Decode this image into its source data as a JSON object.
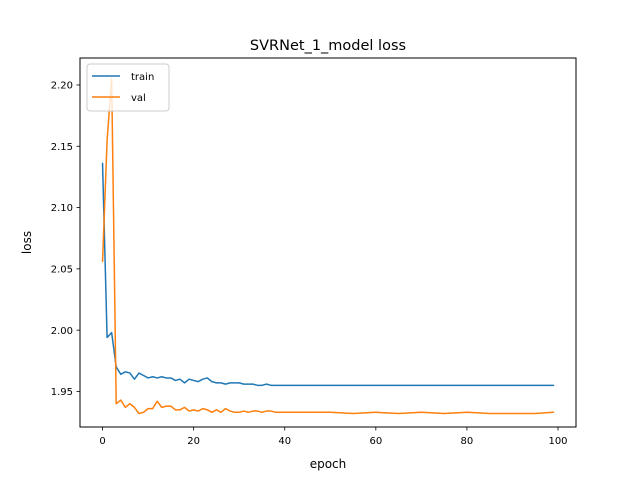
{
  "chart_data": {
    "type": "line",
    "title": "SVRNet_1_model loss",
    "xlabel": "epoch",
    "ylabel": "loss",
    "xlim": [
      -4.95,
      103.95
    ],
    "ylim": [
      1.921,
      2.222
    ],
    "xticks": [
      0,
      20,
      40,
      60,
      80,
      100
    ],
    "xtick_labels": [
      "0",
      "20",
      "40",
      "60",
      "80",
      "100"
    ],
    "yticks": [
      1.95,
      2.0,
      2.05,
      2.1,
      2.15,
      2.2
    ],
    "ytick_labels": [
      "1.95",
      "2.00",
      "2.05",
      "2.10",
      "2.15",
      "2.20"
    ],
    "grid": false,
    "legend_position": "top-left",
    "series": [
      {
        "name": "train",
        "color": "#1f77b4",
        "x": [
          0,
          1,
          2,
          3,
          4,
          5,
          6,
          7,
          8,
          9,
          10,
          11,
          12,
          13,
          14,
          15,
          16,
          17,
          18,
          19,
          20,
          21,
          22,
          23,
          24,
          25,
          26,
          27,
          28,
          29,
          30,
          31,
          32,
          33,
          34,
          35,
          36,
          37,
          38,
          39,
          40,
          45,
          50,
          55,
          60,
          65,
          70,
          75,
          80,
          85,
          90,
          95,
          99
        ],
        "values": [
          2.136,
          1.994,
          1.998,
          1.97,
          1.964,
          1.966,
          1.965,
          1.96,
          1.965,
          1.963,
          1.961,
          1.962,
          1.961,
          1.962,
          1.961,
          1.961,
          1.959,
          1.96,
          1.957,
          1.96,
          1.959,
          1.958,
          1.96,
          1.961,
          1.958,
          1.957,
          1.957,
          1.956,
          1.957,
          1.957,
          1.957,
          1.956,
          1.956,
          1.956,
          1.955,
          1.955,
          1.956,
          1.955,
          1.955,
          1.955,
          1.955,
          1.955,
          1.955,
          1.955,
          1.955,
          1.955,
          1.955,
          1.955,
          1.955,
          1.955,
          1.955,
          1.955,
          1.955
        ]
      },
      {
        "name": "val",
        "color": "#ff7f0e",
        "x": [
          0,
          1,
          2,
          3,
          4,
          5,
          6,
          7,
          8,
          9,
          10,
          11,
          12,
          13,
          14,
          15,
          16,
          17,
          18,
          19,
          20,
          21,
          22,
          23,
          24,
          25,
          26,
          27,
          28,
          29,
          30,
          31,
          32,
          33,
          34,
          35,
          36,
          37,
          38,
          39,
          40,
          45,
          50,
          55,
          60,
          65,
          70,
          75,
          80,
          85,
          90,
          95,
          99
        ],
        "values": [
          2.056,
          2.155,
          2.205,
          1.94,
          1.943,
          1.937,
          1.94,
          1.937,
          1.932,
          1.933,
          1.936,
          1.936,
          1.942,
          1.937,
          1.938,
          1.938,
          1.935,
          1.935,
          1.937,
          1.934,
          1.935,
          1.934,
          1.936,
          1.935,
          1.933,
          1.935,
          1.933,
          1.936,
          1.934,
          1.933,
          1.933,
          1.934,
          1.933,
          1.934,
          1.934,
          1.933,
          1.934,
          1.934,
          1.933,
          1.933,
          1.933,
          1.933,
          1.933,
          1.932,
          1.933,
          1.932,
          1.933,
          1.932,
          1.933,
          1.932,
          1.932,
          1.932,
          1.933
        ]
      }
    ]
  }
}
